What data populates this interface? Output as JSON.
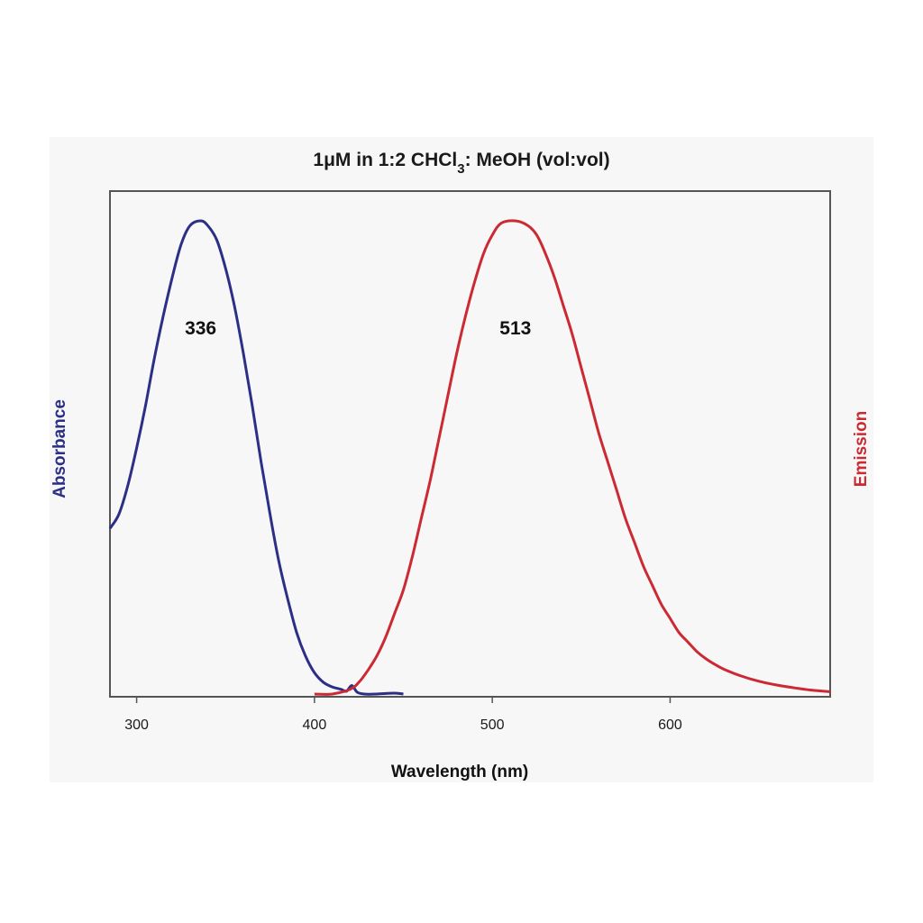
{
  "chart_data": {
    "type": "line",
    "title_parts": {
      "before_sub": "1μM in 1:2 CHCl",
      "sub": "3",
      "after_sub": ": MeOH (vol:vol)"
    },
    "xlabel": "Wavelength (nm)",
    "ylabel_left": "Absorbance",
    "ylabel_right": "Emission",
    "xlim": [
      285,
      690
    ],
    "ylim": [
      0,
      1
    ],
    "x_ticks": [
      "300",
      "400",
      "500",
      "600"
    ],
    "grid": false,
    "colors": {
      "absorbance": "#2b2f86",
      "emission": "#cc2a33"
    },
    "series": [
      {
        "name": "Absorbance",
        "points": [
          [
            285,
            0.35
          ],
          [
            290,
            0.38
          ],
          [
            295,
            0.44
          ],
          [
            300,
            0.52
          ],
          [
            305,
            0.61
          ],
          [
            310,
            0.71
          ],
          [
            315,
            0.8
          ],
          [
            320,
            0.88
          ],
          [
            325,
            0.95
          ],
          [
            330,
            0.99
          ],
          [
            336,
            1.0
          ],
          [
            340,
            0.99
          ],
          [
            345,
            0.96
          ],
          [
            350,
            0.9
          ],
          [
            355,
            0.82
          ],
          [
            360,
            0.72
          ],
          [
            365,
            0.61
          ],
          [
            370,
            0.49
          ],
          [
            375,
            0.38
          ],
          [
            380,
            0.28
          ],
          [
            385,
            0.2
          ],
          [
            390,
            0.13
          ],
          [
            395,
            0.08
          ],
          [
            400,
            0.045
          ],
          [
            405,
            0.025
          ],
          [
            410,
            0.015
          ],
          [
            415,
            0.01
          ],
          [
            418,
            0.006
          ],
          [
            421,
            0.018
          ],
          [
            424,
            0.004
          ],
          [
            428,
            0.0
          ],
          [
            435,
            0.0
          ],
          [
            445,
            0.002
          ],
          [
            450,
            0.0
          ]
        ]
      },
      {
        "name": "Emission",
        "points": [
          [
            400,
            0.0
          ],
          [
            410,
            0.0
          ],
          [
            420,
            0.01
          ],
          [
            425,
            0.025
          ],
          [
            430,
            0.05
          ],
          [
            435,
            0.08
          ],
          [
            440,
            0.12
          ],
          [
            445,
            0.17
          ],
          [
            450,
            0.22
          ],
          [
            455,
            0.29
          ],
          [
            460,
            0.37
          ],
          [
            465,
            0.45
          ],
          [
            470,
            0.54
          ],
          [
            475,
            0.63
          ],
          [
            480,
            0.72
          ],
          [
            485,
            0.8
          ],
          [
            490,
            0.87
          ],
          [
            495,
            0.93
          ],
          [
            500,
            0.97
          ],
          [
            505,
            0.995
          ],
          [
            513,
            1.0
          ],
          [
            520,
            0.99
          ],
          [
            525,
            0.97
          ],
          [
            530,
            0.93
          ],
          [
            535,
            0.88
          ],
          [
            540,
            0.82
          ],
          [
            545,
            0.76
          ],
          [
            550,
            0.69
          ],
          [
            555,
            0.62
          ],
          [
            560,
            0.55
          ],
          [
            565,
            0.49
          ],
          [
            570,
            0.43
          ],
          [
            575,
            0.37
          ],
          [
            580,
            0.32
          ],
          [
            585,
            0.27
          ],
          [
            590,
            0.23
          ],
          [
            595,
            0.19
          ],
          [
            600,
            0.16
          ],
          [
            605,
            0.13
          ],
          [
            610,
            0.11
          ],
          [
            615,
            0.09
          ],
          [
            620,
            0.075
          ],
          [
            625,
            0.063
          ],
          [
            630,
            0.053
          ],
          [
            640,
            0.038
          ],
          [
            650,
            0.027
          ],
          [
            660,
            0.019
          ],
          [
            670,
            0.013
          ],
          [
            680,
            0.008
          ],
          [
            690,
            0.005
          ]
        ]
      }
    ],
    "annotations": [
      {
        "text": "336",
        "x": 336,
        "y": 0.76,
        "series": "Absorbance"
      },
      {
        "text": "513",
        "x": 513,
        "y": 0.76,
        "series": "Emission"
      }
    ]
  }
}
